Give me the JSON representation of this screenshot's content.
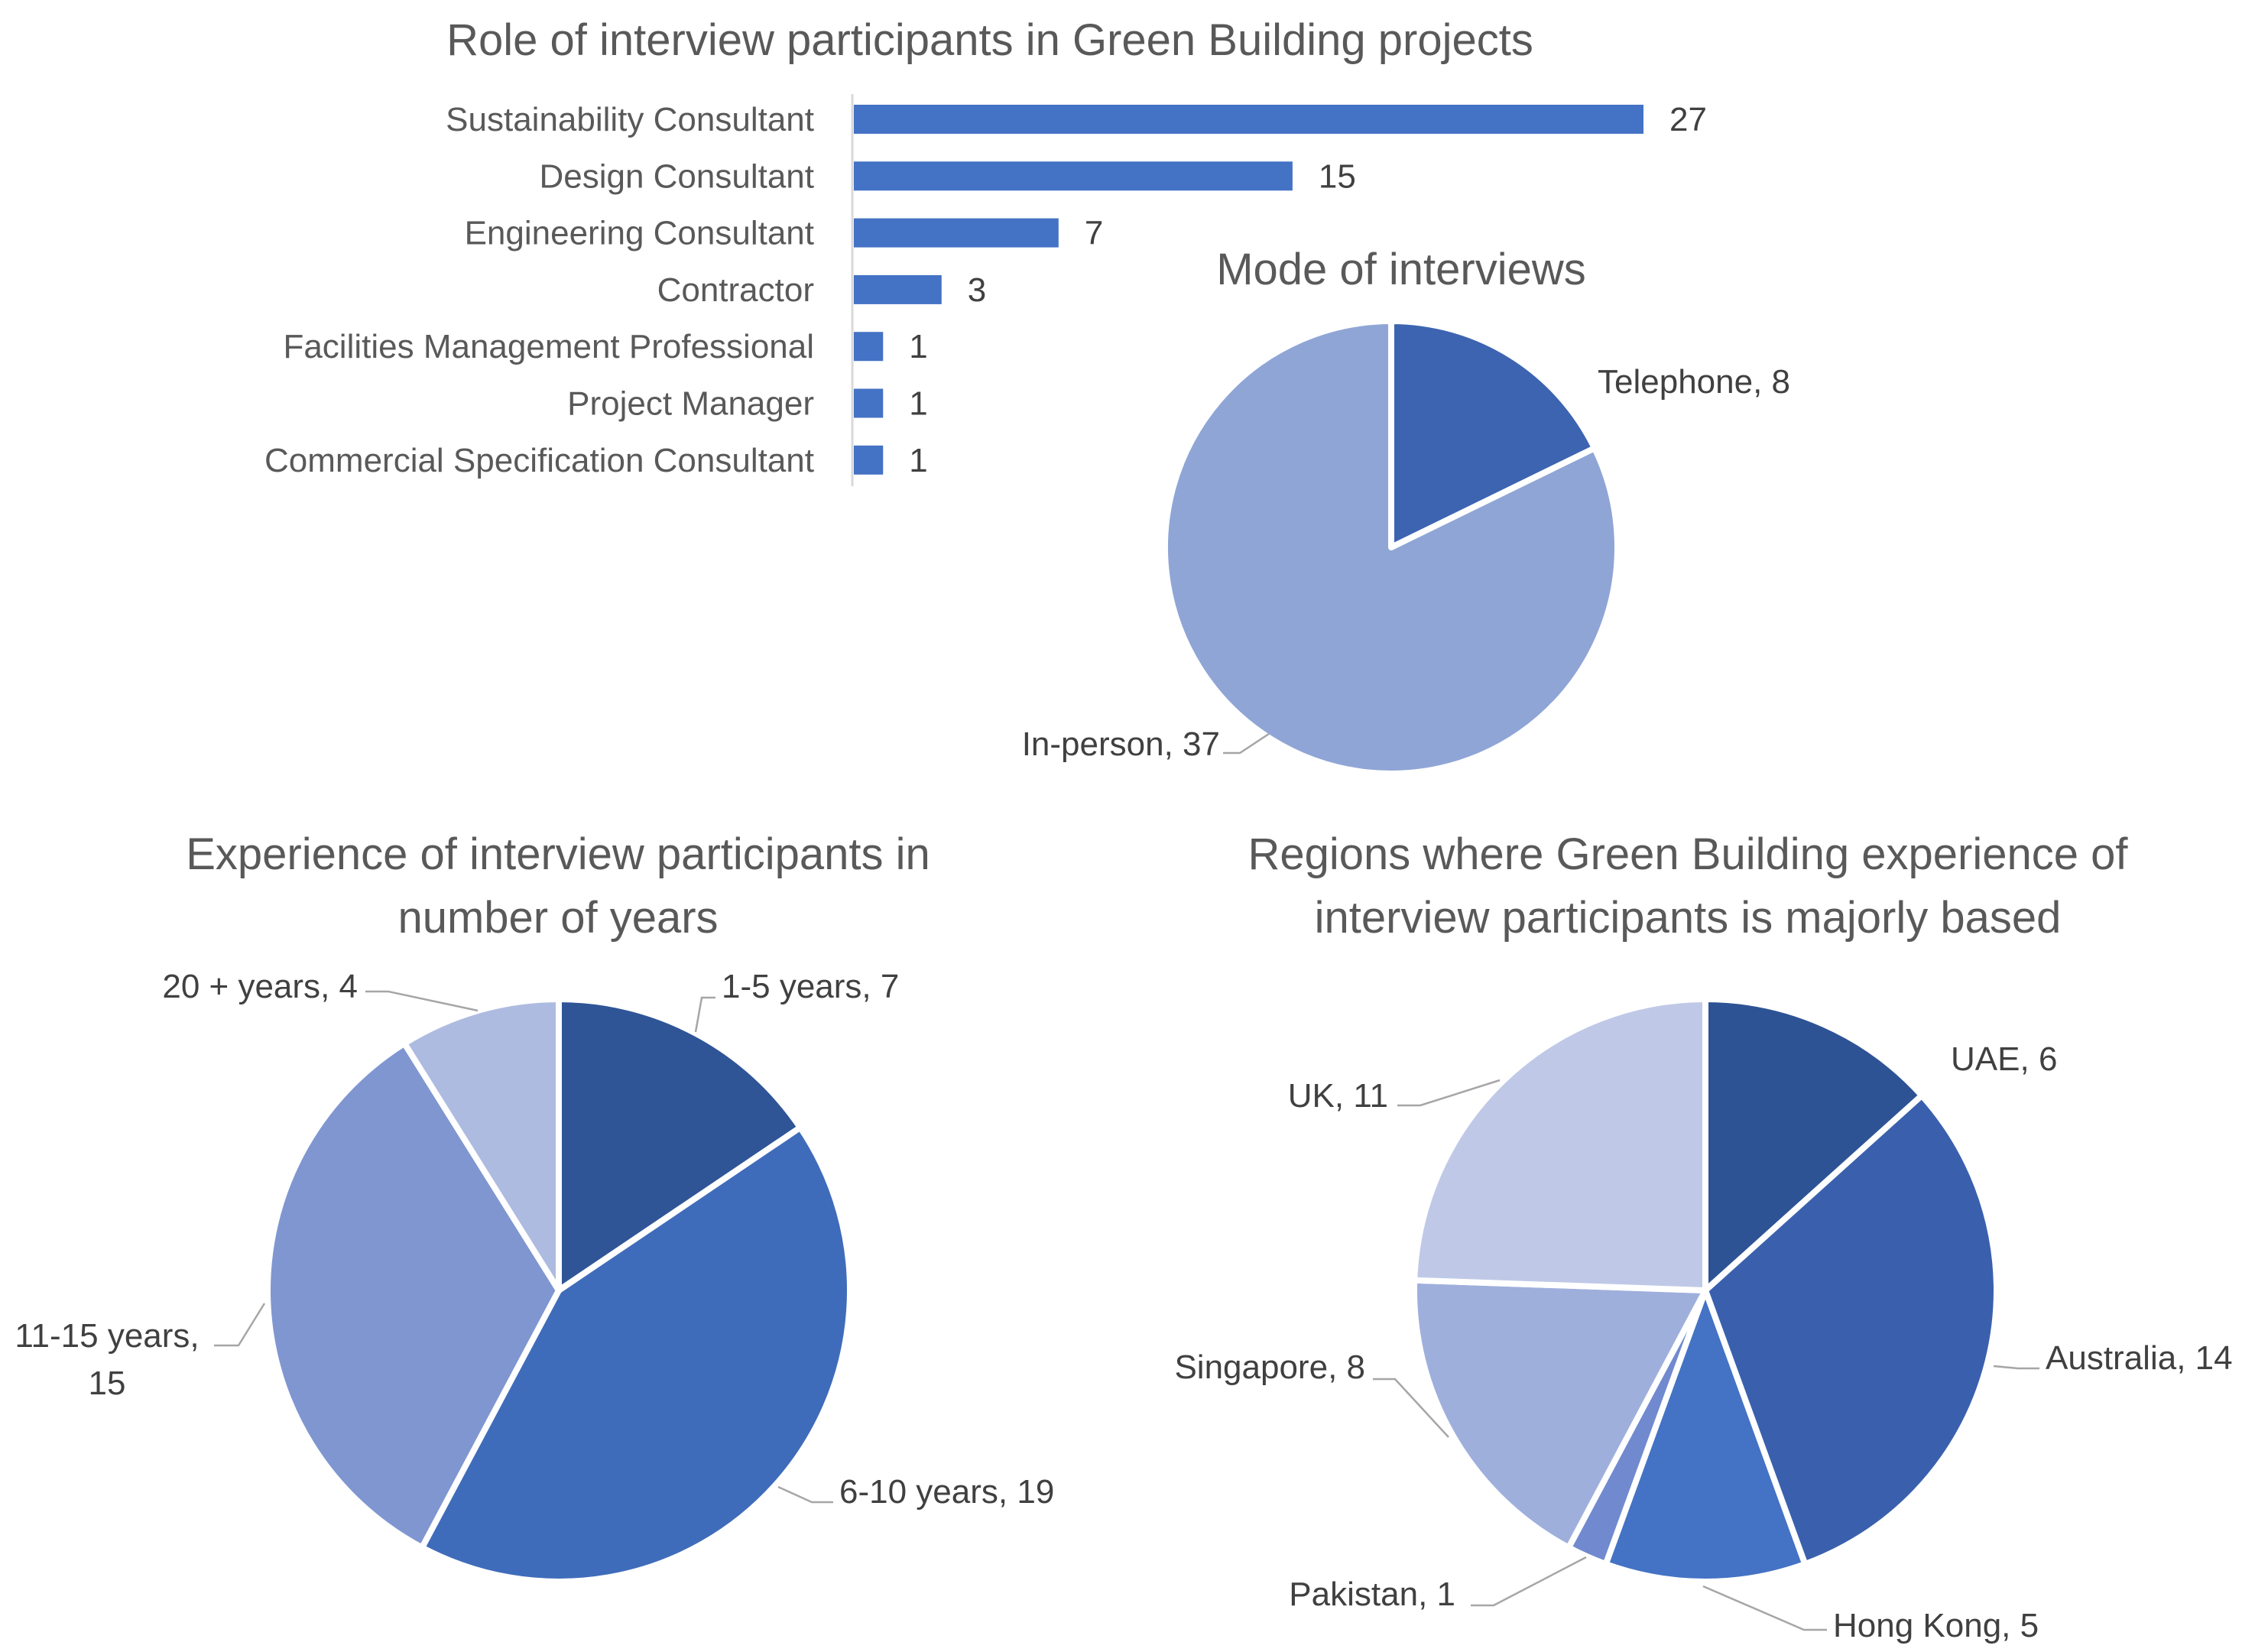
{
  "chart_data": [
    {
      "type": "bar",
      "orientation": "horizontal",
      "title": "Role of interview participants in Green Building projects",
      "categories": [
        "Sustainability Consultant",
        "Design Consultant",
        "Engineering Consultant",
        "Contractor",
        "Facilities Management Professional",
        "Project Manager",
        "Commercial Specification Consultant"
      ],
      "values": [
        27,
        15,
        7,
        3,
        1,
        1,
        1
      ],
      "color": "#4472C4",
      "data_labels": true,
      "grid": false
    },
    {
      "type": "pie",
      "title": "Mode of interviews",
      "slices": [
        {
          "label": "Telephone",
          "value": 8,
          "color": "#3C64B1"
        },
        {
          "label": "In-person",
          "value": 37,
          "color": "#8FA5D6"
        }
      ]
    },
    {
      "type": "pie",
      "title": "Experience of interview participants in number of years",
      "title_lines": [
        "Experience of interview participants in",
        "number of years"
      ],
      "slices": [
        {
          "label": "1-5 years",
          "value": 7,
          "color": "#2F5597"
        },
        {
          "label": "6-10 years",
          "value": 19,
          "color": "#3F6CBA"
        },
        {
          "label": "11-15 years",
          "value": 15,
          "color": "#7F96D1"
        },
        {
          "label": "20 + years",
          "value": 4,
          "color": "#AEBBE0"
        }
      ]
    },
    {
      "type": "pie",
      "title": "Regions where Green Building experience of interview participants is majorly based",
      "title_lines": [
        "Regions where Green Building experience of",
        "interview participants is majorly based"
      ],
      "slices": [
        {
          "label": "UAE",
          "value": 6,
          "color": "#2E5395"
        },
        {
          "label": "Australia",
          "value": 14,
          "color": "#3A60AD"
        },
        {
          "label": "Hong Kong",
          "value": 5,
          "color": "#4472C4"
        },
        {
          "label": "Pakistan",
          "value": 1,
          "color": "#7189CF"
        },
        {
          "label": "Singapore",
          "value": 8,
          "color": "#9FAFDC"
        },
        {
          "label": "UK",
          "value": 11,
          "color": "#BFC9E7"
        }
      ]
    }
  ]
}
